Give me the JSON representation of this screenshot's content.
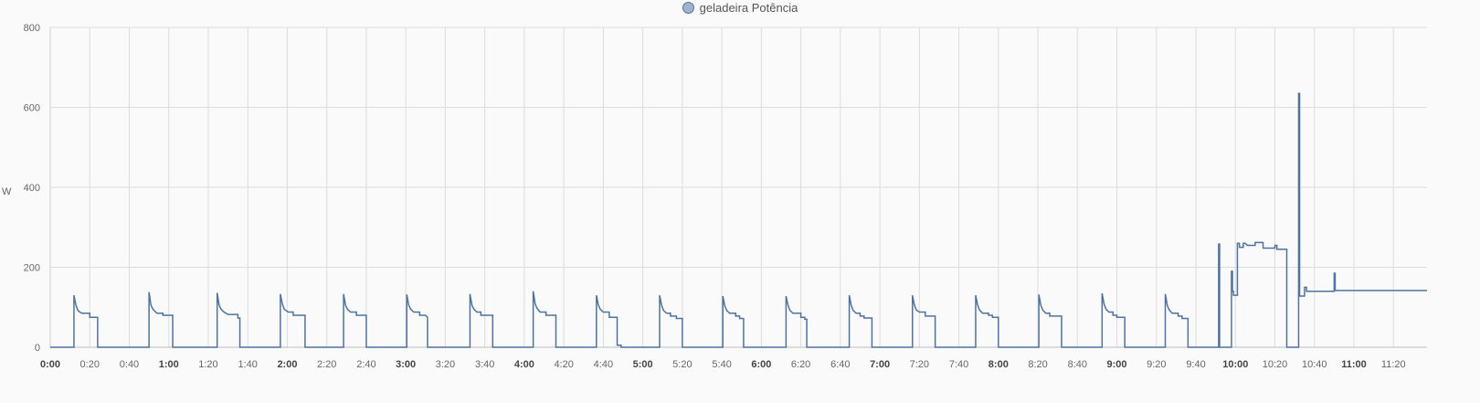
{
  "chart_data": {
    "type": "line",
    "title": "",
    "xlabel": "",
    "ylabel": "W",
    "ylim": [
      0,
      800
    ],
    "y_ticks": [
      0,
      200,
      400,
      600,
      800
    ],
    "xlim_minutes": [
      0,
      697
    ],
    "x_ticks": [
      {
        "label": "0:00",
        "bold": true
      },
      {
        "label": "0:20",
        "bold": false
      },
      {
        "label": "0:40",
        "bold": false
      },
      {
        "label": "1:00",
        "bold": true
      },
      {
        "label": "1:20",
        "bold": false
      },
      {
        "label": "1:40",
        "bold": false
      },
      {
        "label": "2:00",
        "bold": true
      },
      {
        "label": "2:20",
        "bold": false
      },
      {
        "label": "2:40",
        "bold": false
      },
      {
        "label": "3:00",
        "bold": true
      },
      {
        "label": "3:20",
        "bold": false
      },
      {
        "label": "3:40",
        "bold": false
      },
      {
        "label": "4:00",
        "bold": true
      },
      {
        "label": "4:20",
        "bold": false
      },
      {
        "label": "4:40",
        "bold": false
      },
      {
        "label": "5:00",
        "bold": true
      },
      {
        "label": "5:20",
        "bold": false
      },
      {
        "label": "5:40",
        "bold": false
      },
      {
        "label": "6:00",
        "bold": true
      },
      {
        "label": "6:20",
        "bold": false
      },
      {
        "label": "6:40",
        "bold": false
      },
      {
        "label": "7:00",
        "bold": true
      },
      {
        "label": "7:20",
        "bold": false
      },
      {
        "label": "7:40",
        "bold": false
      },
      {
        "label": "8:00",
        "bold": true
      },
      {
        "label": "8:20",
        "bold": false
      },
      {
        "label": "8:40",
        "bold": false
      },
      {
        "label": "9:00",
        "bold": true
      },
      {
        "label": "9:20",
        "bold": false
      },
      {
        "label": "9:40",
        "bold": false
      },
      {
        "label": "10:00",
        "bold": true
      },
      {
        "label": "10:20",
        "bold": false
      },
      {
        "label": "10:40",
        "bold": false
      },
      {
        "label": "11:00",
        "bold": true
      },
      {
        "label": "11:20",
        "bold": false
      }
    ],
    "grid": true,
    "legend_position": "top-center",
    "series": [
      {
        "name": "geladeira Potência",
        "color": "#4e73a0",
        "cycle_starts_min": [
          12,
          50,
          84.5,
          116.5,
          148.5,
          180.5,
          212.5,
          244.5,
          276.5,
          308.5,
          340.5,
          372.5,
          404.5,
          436.5,
          468.5,
          500.5,
          532.5
        ],
        "cycle_profile": {
          "peak": 130,
          "mid": 100,
          "plateau": 85,
          "low": 75,
          "duration_min": 12
        },
        "steps": [
          [
            0,
            0
          ],
          [
            12,
            0
          ],
          [
            12,
            130
          ],
          [
            13,
            105
          ],
          [
            14,
            92
          ],
          [
            15,
            88
          ],
          [
            16,
            85
          ],
          [
            20,
            85
          ],
          [
            20,
            75
          ],
          [
            24,
            75
          ],
          [
            24,
            0
          ],
          [
            50,
            0
          ],
          [
            50,
            138
          ],
          [
            51,
            105
          ],
          [
            52,
            95
          ],
          [
            54,
            85
          ],
          [
            57,
            85
          ],
          [
            57,
            80
          ],
          [
            62,
            80
          ],
          [
            62,
            0
          ],
          [
            84.5,
            0
          ],
          [
            84.5,
            136
          ],
          [
            85.5,
            105
          ],
          [
            86.5,
            95
          ],
          [
            88,
            88
          ],
          [
            90,
            82
          ],
          [
            95,
            82
          ],
          [
            95,
            73
          ],
          [
            96,
            73
          ],
          [
            96,
            0
          ],
          [
            116.5,
            0
          ],
          [
            116.5,
            133
          ],
          [
            117.5,
            108
          ],
          [
            118.5,
            95
          ],
          [
            120.5,
            88
          ],
          [
            123,
            88
          ],
          [
            123,
            80
          ],
          [
            129,
            80
          ],
          [
            129,
            0
          ],
          [
            148.5,
            0
          ],
          [
            148.5,
            133
          ],
          [
            149.5,
            105
          ],
          [
            150.5,
            95
          ],
          [
            152,
            88
          ],
          [
            155,
            88
          ],
          [
            155,
            80
          ],
          [
            160,
            80
          ],
          [
            160,
            0
          ],
          [
            180.5,
            0
          ],
          [
            180.5,
            132
          ],
          [
            181.5,
            105
          ],
          [
            182.5,
            95
          ],
          [
            184,
            88
          ],
          [
            187,
            88
          ],
          [
            187,
            80
          ],
          [
            190,
            80
          ],
          [
            191,
            75
          ],
          [
            191,
            0
          ],
          [
            212.5,
            0
          ],
          [
            212.5,
            133
          ],
          [
            213.5,
            105
          ],
          [
            214.5,
            95
          ],
          [
            216,
            88
          ],
          [
            218,
            88
          ],
          [
            218,
            80
          ],
          [
            224,
            80
          ],
          [
            224,
            0
          ],
          [
            244.5,
            0
          ],
          [
            244.5,
            140
          ],
          [
            245.5,
            108
          ],
          [
            246.5,
            97
          ],
          [
            248,
            88
          ],
          [
            251,
            88
          ],
          [
            251,
            80
          ],
          [
            256,
            80
          ],
          [
            256,
            0
          ],
          [
            276.5,
            0
          ],
          [
            276.5,
            130
          ],
          [
            277.5,
            105
          ],
          [
            278.5,
            95
          ],
          [
            280,
            88
          ],
          [
            283,
            88
          ],
          [
            283,
            75
          ],
          [
            287,
            75
          ],
          [
            287,
            5
          ],
          [
            289,
            5
          ],
          [
            289,
            0
          ],
          [
            308.5,
            0
          ],
          [
            308.5,
            130
          ],
          [
            309.5,
            105
          ],
          [
            310.5,
            92
          ],
          [
            312,
            85
          ],
          [
            314,
            85
          ],
          [
            314,
            78
          ],
          [
            317,
            78
          ],
          [
            317,
            72
          ],
          [
            320,
            72
          ],
          [
            320,
            0
          ],
          [
            340.5,
            0
          ],
          [
            340.5,
            128
          ],
          [
            341.5,
            103
          ],
          [
            342.5,
            92
          ],
          [
            344,
            85
          ],
          [
            347,
            85
          ],
          [
            347,
            78
          ],
          [
            349,
            78
          ],
          [
            349,
            72
          ],
          [
            351,
            72
          ],
          [
            351,
            0
          ],
          [
            372.5,
            0
          ],
          [
            372.5,
            128
          ],
          [
            373.5,
            105
          ],
          [
            374.5,
            92
          ],
          [
            376,
            85
          ],
          [
            380,
            85
          ],
          [
            380,
            75
          ],
          [
            382,
            75
          ],
          [
            382,
            70
          ],
          [
            383,
            70
          ],
          [
            383,
            0
          ],
          [
            404.5,
            0
          ],
          [
            404.5,
            130
          ],
          [
            405.5,
            105
          ],
          [
            406.5,
            92
          ],
          [
            408,
            85
          ],
          [
            410,
            85
          ],
          [
            410,
            78
          ],
          [
            412,
            78
          ],
          [
            412,
            73
          ],
          [
            416,
            73
          ],
          [
            416,
            0
          ],
          [
            436.5,
            0
          ],
          [
            436.5,
            130
          ],
          [
            437.5,
            105
          ],
          [
            438.5,
            93
          ],
          [
            440,
            88
          ],
          [
            443,
            88
          ],
          [
            443,
            78
          ],
          [
            448,
            78
          ],
          [
            448,
            0
          ],
          [
            468.5,
            0
          ],
          [
            468.5,
            130
          ],
          [
            469.5,
            105
          ],
          [
            470.5,
            93
          ],
          [
            472,
            85
          ],
          [
            475,
            85
          ],
          [
            475,
            80
          ],
          [
            477,
            80
          ],
          [
            477,
            75
          ],
          [
            480,
            75
          ],
          [
            480,
            0
          ],
          [
            500.5,
            0
          ],
          [
            500.5,
            132
          ],
          [
            501.5,
            105
          ],
          [
            502.5,
            93
          ],
          [
            504,
            85
          ],
          [
            506,
            85
          ],
          [
            506,
            78
          ],
          [
            512,
            78
          ],
          [
            512,
            0
          ],
          [
            532.5,
            0
          ],
          [
            532.5,
            135
          ],
          [
            533.5,
            108
          ],
          [
            534.5,
            95
          ],
          [
            536,
            88
          ],
          [
            538,
            88
          ],
          [
            538,
            80
          ],
          [
            540,
            80
          ],
          [
            540,
            75
          ],
          [
            544,
            75
          ],
          [
            544,
            0
          ],
          [
            564.5,
            0
          ],
          [
            564.5,
            133
          ],
          [
            565.5,
            105
          ],
          [
            566.5,
            93
          ],
          [
            568,
            85
          ],
          [
            571,
            85
          ],
          [
            571,
            78
          ],
          [
            573,
            78
          ],
          [
            573,
            72
          ],
          [
            576,
            72
          ],
          [
            576,
            0
          ],
          [
            591.5,
            0
          ],
          [
            591.5,
            258
          ],
          [
            592,
            258
          ],
          [
            592,
            0
          ],
          [
            598,
            0
          ],
          [
            598,
            190
          ],
          [
            598.5,
            190
          ],
          [
            598.5,
            140
          ],
          [
            599,
            140
          ],
          [
            599,
            130
          ],
          [
            601,
            130
          ],
          [
            601,
            260
          ],
          [
            602,
            260
          ],
          [
            602,
            250
          ],
          [
            604,
            250
          ],
          [
            604,
            260
          ],
          [
            605,
            260
          ],
          [
            606,
            255
          ],
          [
            610,
            255
          ],
          [
            610,
            262
          ],
          [
            614,
            262
          ],
          [
            614,
            248
          ],
          [
            620,
            248
          ],
          [
            620,
            255
          ],
          [
            621,
            255
          ],
          [
            621,
            245
          ],
          [
            626,
            245
          ],
          [
            626,
            0
          ],
          [
            632,
            0
          ],
          [
            632,
            635
          ],
          [
            632.5,
            635
          ],
          [
            632.5,
            128
          ],
          [
            635,
            128
          ],
          [
            635,
            150
          ],
          [
            636,
            150
          ],
          [
            636,
            140
          ],
          [
            650,
            140
          ],
          [
            650,
            185
          ],
          [
            650.5,
            185
          ],
          [
            650.5,
            142
          ],
          [
            697,
            142
          ]
        ]
      }
    ]
  }
}
